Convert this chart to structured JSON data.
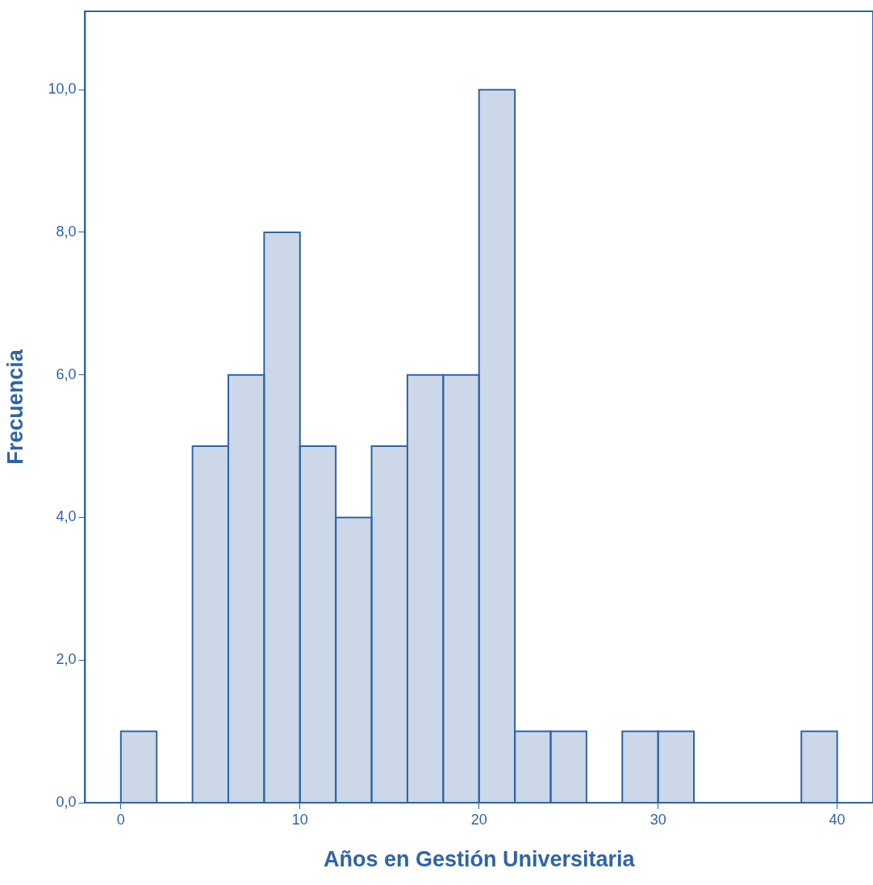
{
  "chart_data": {
    "type": "histogram",
    "xlabel": "Años en Gestión Universitaria",
    "ylabel": "Frecuencia",
    "bins": [
      0,
      2,
      4,
      6,
      8,
      10,
      12,
      14,
      16,
      18,
      20,
      22,
      24,
      26,
      28,
      30,
      32,
      34,
      36,
      38,
      40
    ],
    "values": [
      1,
      0,
      5,
      6,
      8,
      5,
      4,
      5,
      6,
      6,
      10,
      1,
      1,
      0,
      1,
      1,
      0,
      0,
      0,
      1
    ],
    "color": "#ccd7e8",
    "xlim": [
      -2,
      42
    ],
    "xticks": [
      0,
      10,
      20,
      30,
      40
    ],
    "ylim": [
      0,
      11.1
    ],
    "yticks": [
      {
        "value": 0,
        "label": "0,0"
      },
      {
        "value": 2,
        "label": "2,0"
      },
      {
        "value": 4,
        "label": "4,0"
      },
      {
        "value": 6,
        "label": "6,0"
      },
      {
        "value": 8,
        "label": "8,0"
      },
      {
        "value": 10,
        "label": "10,0"
      }
    ],
    "grid": false,
    "legend": false
  }
}
